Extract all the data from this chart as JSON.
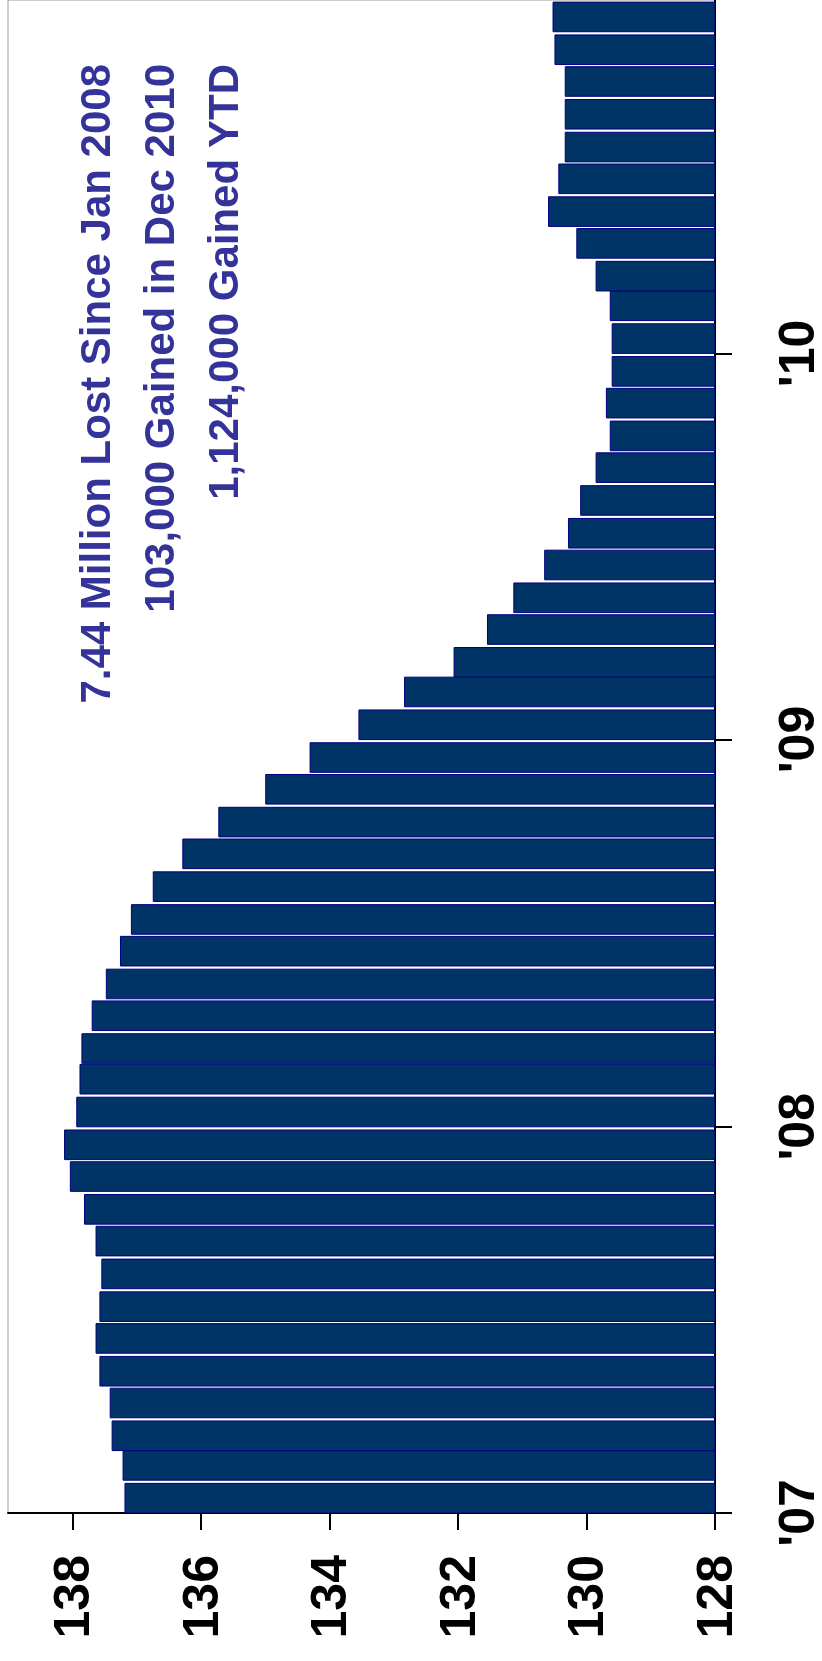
{
  "chart_data": {
    "type": "bar",
    "orientation": "horizontal",
    "x": [
      "2007-01",
      "2007-02",
      "2007-03",
      "2007-04",
      "2007-05",
      "2007-06",
      "2007-07",
      "2007-08",
      "2007-09",
      "2007-10",
      "2007-11",
      "2007-12",
      "2008-01",
      "2008-02",
      "2008-03",
      "2008-04",
      "2008-05",
      "2008-06",
      "2008-07",
      "2008-08",
      "2008-09",
      "2008-10",
      "2008-11",
      "2008-12",
      "2009-01",
      "2009-02",
      "2009-03",
      "2009-04",
      "2009-05",
      "2009-06",
      "2009-07",
      "2009-08",
      "2009-09",
      "2009-10",
      "2009-11",
      "2009-12",
      "2010-01",
      "2010-02",
      "2010-03",
      "2010-04",
      "2010-05",
      "2010-06",
      "2010-07",
      "2010-08",
      "2010-09",
      "2010-10",
      "2010-11"
    ],
    "values": [
      137.18,
      137.21,
      137.38,
      137.41,
      137.57,
      137.63,
      137.57,
      137.54,
      137.63,
      137.81,
      138.03,
      138.12,
      137.93,
      137.88,
      137.85,
      137.69,
      137.47,
      137.25,
      137.08,
      136.74,
      136.28,
      135.72,
      134.99,
      134.3,
      133.54,
      132.83,
      132.06,
      131.54,
      131.13,
      130.65,
      130.28,
      130.09,
      129.85,
      129.63,
      129.69,
      129.6,
      129.6,
      129.63,
      129.85,
      130.15,
      130.59,
      130.43,
      130.33,
      130.33,
      130.33,
      130.49,
      130.52
    ],
    "color": "#003366",
    "xlim": [
      139,
      128
    ],
    "xticks": [
      128,
      130,
      132,
      134,
      136,
      138
    ],
    "ylim": [
      "2007-01-01",
      "2010-12-01"
    ],
    "yticks": [
      {
        "value": "2007-01-01",
        "label": "'07"
      },
      {
        "value": "2008-01-01",
        "label": "'08"
      },
      {
        "value": "2009-01-01",
        "label": "'09"
      },
      {
        "value": "2010-01-01",
        "label": "'10"
      }
    ],
    "grid": false,
    "annotations": [
      "7.44 Million Lost Since Jan 2008",
      "103,000 Gained in Dec 2010",
      "1,124,000 Gained YTD"
    ]
  }
}
